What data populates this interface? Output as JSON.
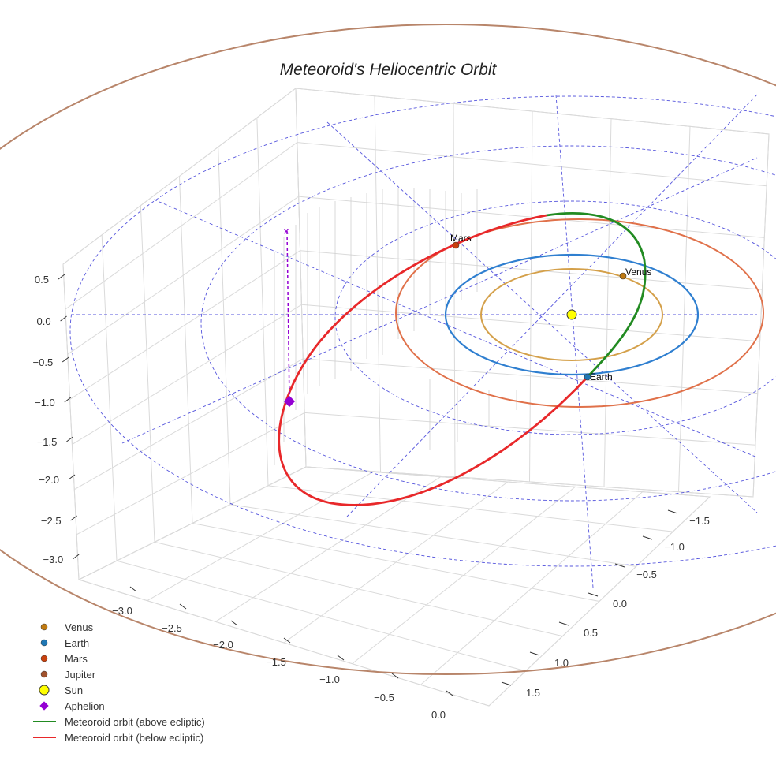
{
  "chart_data": {
    "type": "line",
    "title": "Meteoroid's Heliocentric Orbit",
    "projection": "3d",
    "x_ticks": [
      "−3.0",
      "−2.5",
      "−2.0",
      "−1.5",
      "−1.0",
      "−0.5",
      "0.0"
    ],
    "y_ticks": [
      "−1.5",
      "−1.0",
      "−0.5",
      "0.0",
      "0.5",
      "1.0",
      "1.5"
    ],
    "z_ticks": [
      "0.5",
      "0.0",
      "−0.5",
      "−1.0",
      "−1.5",
      "−2.0",
      "−2.5",
      "−3.0"
    ],
    "planet_labels": {
      "venus": "Venus",
      "earth": "Earth",
      "mars": "Mars"
    },
    "legend": [
      {
        "label": "Venus",
        "marker": "circle",
        "color": "#c07a12"
      },
      {
        "label": "Earth",
        "marker": "circle",
        "color": "#1f77b4"
      },
      {
        "label": "Mars",
        "marker": "circle",
        "color": "#c8410e"
      },
      {
        "label": "Jupiter",
        "marker": "circle",
        "color": "#a0522d"
      },
      {
        "label": "Sun",
        "marker": "circle",
        "color": "#ffff00"
      },
      {
        "label": "Aphelion",
        "marker": "diamond",
        "color": "#9400d3"
      },
      {
        "label": "Meteoroid orbit (above ecliptic)",
        "marker": "line",
        "color": "#228b22"
      },
      {
        "label": "Meteoroid orbit (below ecliptic)",
        "marker": "line",
        "color": "#e8282a"
      }
    ],
    "legend_position": "lower-left",
    "orbit_colors": {
      "venus": "#d4a04a",
      "earth": "#2f7fd0",
      "mars": "#e0714a",
      "jupiter": "#b8856a",
      "grid": "#5555dd"
    }
  }
}
